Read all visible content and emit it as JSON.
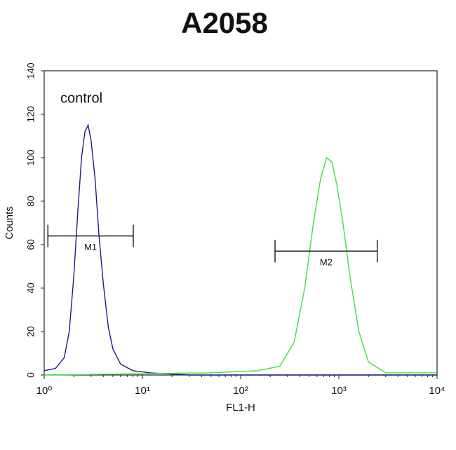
{
  "chart_data": {
    "type": "line",
    "title": "A2058",
    "xlabel": "FL1-H",
    "ylabel": "Counts",
    "xscale": "log",
    "xlim": [
      1,
      10000
    ],
    "xticks": [
      {
        "value": 1,
        "label": "10⁰"
      },
      {
        "value": 10,
        "label": "10¹"
      },
      {
        "value": 100,
        "label": "10²"
      },
      {
        "value": 1000,
        "label": "10³"
      },
      {
        "value": 10000,
        "label": "10⁴"
      }
    ],
    "ylim": [
      0,
      140
    ],
    "yticks": [
      0,
      20,
      40,
      60,
      80,
      100,
      120,
      140
    ],
    "annotation": "control",
    "series": [
      {
        "color": "#1c1c8a",
        "x": [
          1,
          1.3,
          1.6,
          1.8,
          2.0,
          2.2,
          2.4,
          2.6,
          2.8,
          3.0,
          3.3,
          3.6,
          4.0,
          4.5,
          5.0,
          6.0,
          8,
          12,
          30,
          100,
          10000
        ],
        "values": [
          2,
          3,
          8,
          20,
          45,
          75,
          100,
          112,
          115,
          108,
          90,
          65,
          42,
          22,
          12,
          5,
          2,
          1,
          0,
          0,
          0
        ]
      },
      {
        "color": "#3ee03e",
        "x": [
          1,
          50,
          150,
          250,
          350,
          450,
          550,
          650,
          750,
          850,
          950,
          1100,
          1300,
          1600,
          2000,
          3000,
          10000
        ],
        "values": [
          0,
          1,
          2,
          4,
          15,
          40,
          70,
          90,
          100,
          98,
          88,
          70,
          45,
          20,
          6,
          1,
          1
        ]
      }
    ],
    "markers": [
      {
        "label": "M1",
        "x": [
          1.09,
          8.07
        ],
        "value": 64
      },
      {
        "label": "M2",
        "x": [
          224,
          2460
        ],
        "value": 57
      }
    ]
  }
}
